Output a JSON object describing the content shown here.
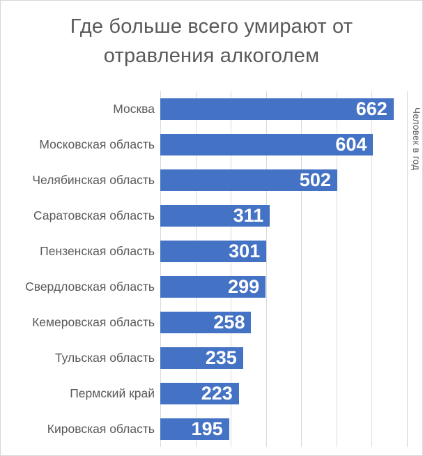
{
  "window": {
    "background": "#FFFFFF",
    "border_color": "#D6D6D6"
  },
  "chart_data": {
    "type": "bar",
    "orientation": "horizontal",
    "title": "Где больше всего умирают от отравления алкоголем",
    "categories": [
      "Москва",
      "Московская область",
      "Челябинская область",
      "Саратовская область",
      "Пензенская область",
      "Свердловская область",
      "Кемеровская область",
      "Тульская область",
      "Пермский край",
      "Кировская область"
    ],
    "values": [
      662,
      604,
      502,
      311,
      301,
      299,
      258,
      235,
      223,
      195
    ],
    "value_axis_label": "Человек в год",
    "xlabel": "",
    "ylabel": "Человек в год",
    "xlim": [
      0,
      700
    ],
    "gridline_step": 100,
    "grid": true,
    "legend": false,
    "data_labels_position": "inside-end",
    "colors": {
      "bar": "#4472C4",
      "value_label": "#FFFFFF",
      "title_text": "#595959",
      "category_text": "#595959",
      "axis_title_text": "#595959",
      "gridline": "#D9D9D9"
    }
  }
}
